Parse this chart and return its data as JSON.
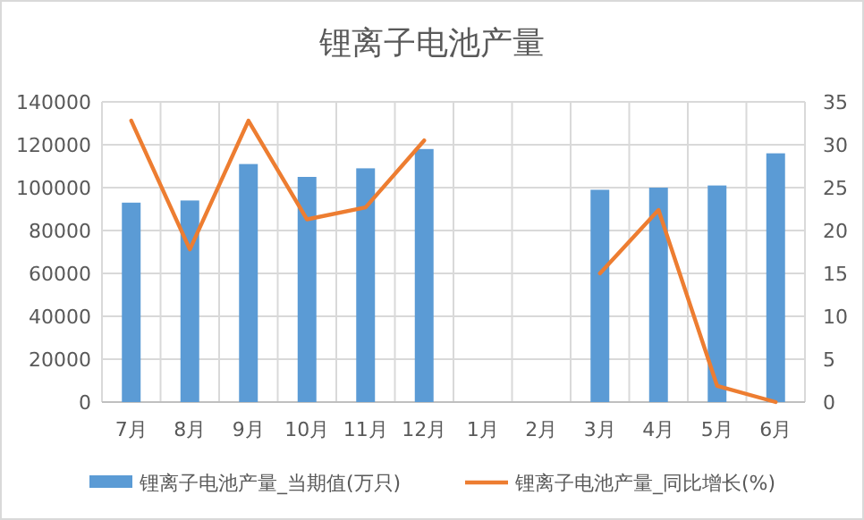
{
  "chart_data": {
    "type": "bar",
    "title": "锂离子电池产量",
    "categories": [
      "7月",
      "8月",
      "9月",
      "10月",
      "11月",
      "12月",
      "1月",
      "2月",
      "3月",
      "4月",
      "5月",
      "6月"
    ],
    "series": [
      {
        "name": "锂离子电池产量_当期值(万只)",
        "color": "#5b9bd5",
        "values": [
          93000,
          94000,
          111000,
          105000,
          109000,
          118000,
          null,
          null,
          99000,
          100000,
          101000,
          116000
        ]
      },
      {
        "name": "锂离子电池产量_同比增长(%)",
        "type": "line",
        "axis": "y2",
        "color": "#ed7d31",
        "values": [
          32.8,
          17.8,
          32.8,
          21.3,
          22.7,
          30.5,
          null,
          null,
          15.0,
          22.4,
          1.9,
          0
        ]
      }
    ],
    "ylim": [
      0,
      140000
    ],
    "yticks": [
      0,
      20000,
      40000,
      60000,
      80000,
      100000,
      120000,
      140000
    ],
    "y2lim": [
      0,
      35
    ],
    "y2ticks": [
      0,
      5,
      10,
      15,
      20,
      25,
      30,
      35
    ],
    "grid": true,
    "legend": "bottom"
  }
}
